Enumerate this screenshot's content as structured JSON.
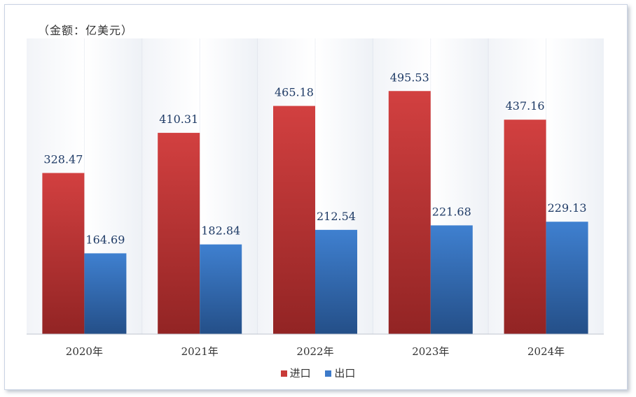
{
  "chart_data": {
    "type": "bar",
    "unit_label": "（金额：亿美元）",
    "categories": [
      "2020年",
      "2021年",
      "2022年",
      "2023年",
      "2024年"
    ],
    "series": [
      {
        "name": "进口",
        "color": "#c83a38",
        "values": [
          328.47,
          410.31,
          465.18,
          495.53,
          437.16
        ]
      },
      {
        "name": "出口",
        "color": "#3d7ac9",
        "values": [
          164.69,
          182.84,
          212.54,
          221.68,
          229.13
        ]
      }
    ],
    "ylim": [
      0,
      550
    ],
    "grid": false,
    "legend_position": "bottom"
  }
}
